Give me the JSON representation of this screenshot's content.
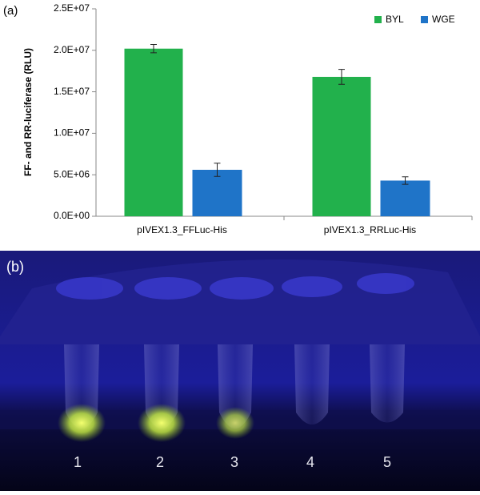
{
  "panels": {
    "a": "(a)",
    "b": "(b)"
  },
  "photo": {
    "tube_labels": [
      "1",
      "2",
      "3",
      "4",
      "5"
    ]
  },
  "chart_data": {
    "type": "bar",
    "y_label": "FF- and RR-luciferase (RLU)",
    "categories": [
      "pIVEX1.3_FFLuc-His",
      "pIVEX1.3_RRLuc-His"
    ],
    "series": [
      {
        "name": "BYL",
        "color": "#22b14c",
        "values": [
          20200000,
          16800000
        ],
        "errors": [
          500000,
          900000
        ]
      },
      {
        "name": "WGE",
        "color": "#1f74c8",
        "values": [
          5600000,
          4300000
        ],
        "errors": [
          800000,
          450000
        ]
      }
    ],
    "ylim": [
      0,
      25000000
    ],
    "yticks": [
      {
        "value": 0,
        "label": "0.0E+00"
      },
      {
        "value": 5000000,
        "label": "5.0E+06"
      },
      {
        "value": 10000000,
        "label": "1.0E+07"
      },
      {
        "value": 15000000,
        "label": "1.5E+07"
      },
      {
        "value": 20000000,
        "label": "2.0E+07"
      },
      {
        "value": 25000000,
        "label": "2.5E+07"
      }
    ],
    "legend": "upper right"
  }
}
